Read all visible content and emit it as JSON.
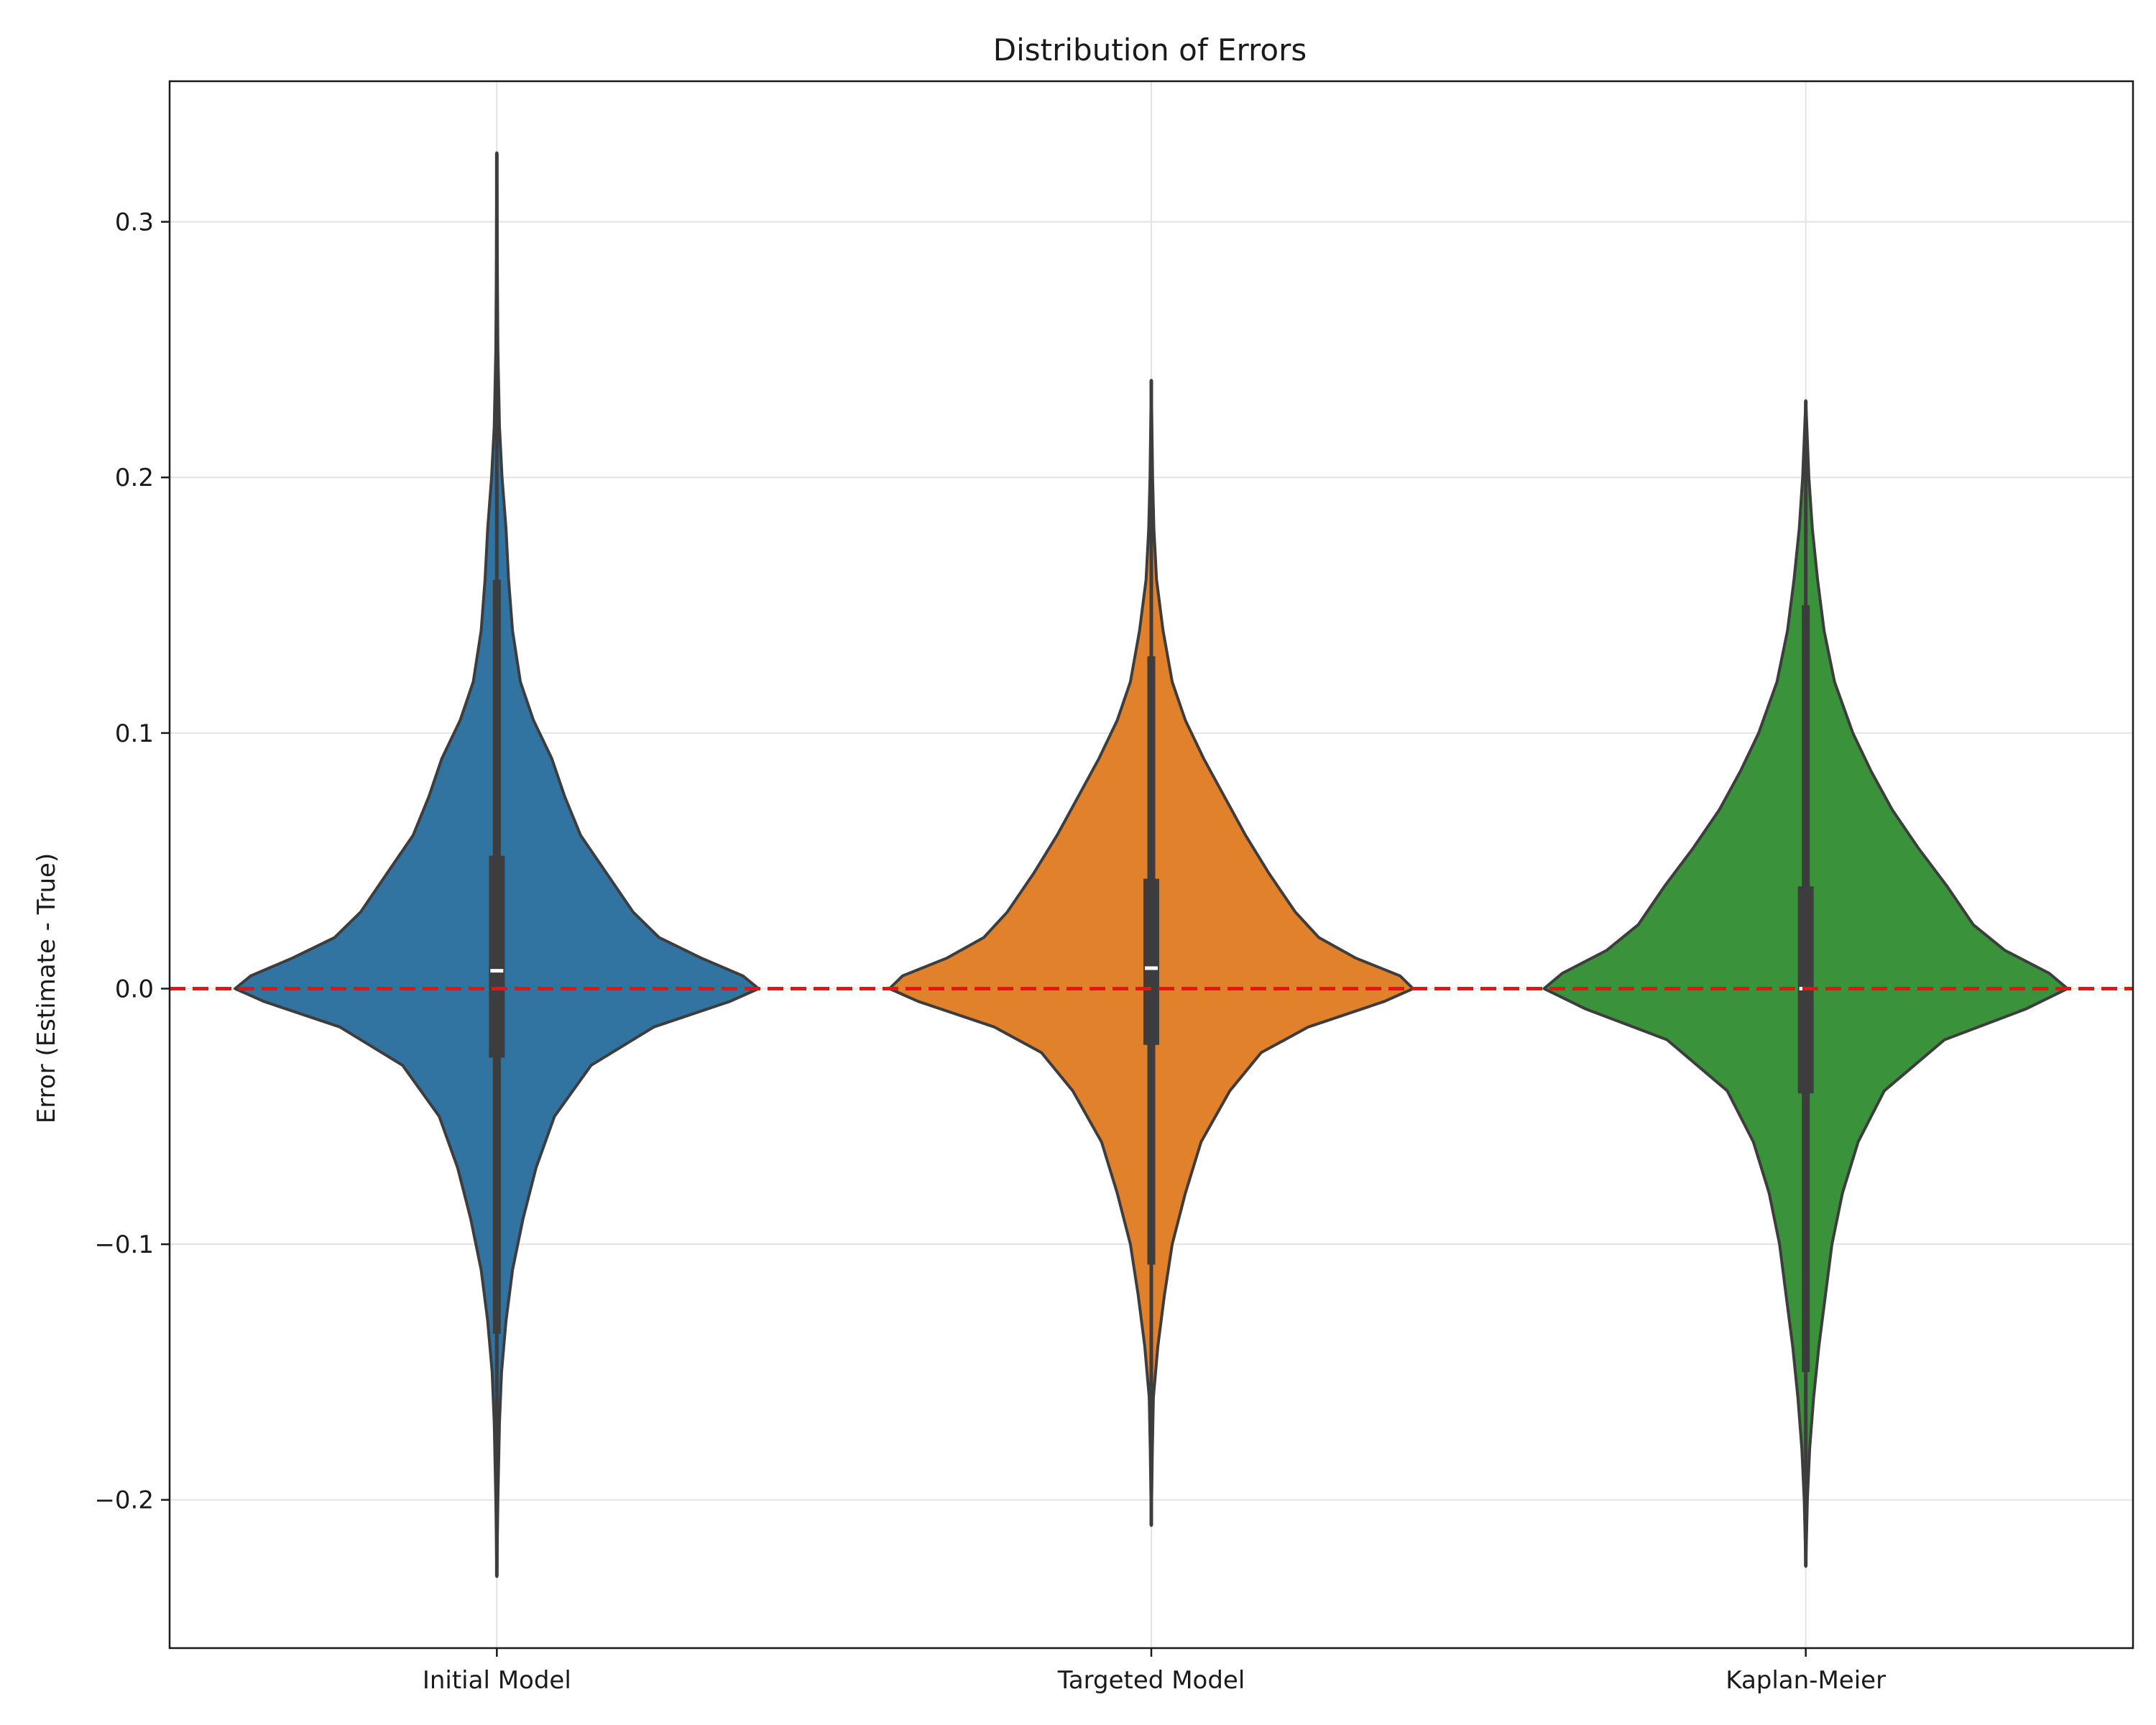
{
  "chart_data": {
    "type": "violin",
    "title": "Distribution of Errors",
    "xlabel": "",
    "ylabel": "Error (Estimate - True)",
    "ylim": [
      -0.258,
      0.355
    ],
    "yticks": [
      -0.2,
      -0.1,
      0.0,
      0.1,
      0.2,
      0.3
    ],
    "ytick_labels": [
      "−0.2",
      "−0.1",
      "0.0",
      "0.1",
      "0.2",
      "0.3"
    ],
    "grid": true,
    "reference_line": {
      "y": 0.0,
      "color": "#ee1111",
      "style": "dashed"
    },
    "categories": [
      "Initial Model",
      "Targeted Model",
      "Kaplan-Meier"
    ],
    "series": [
      {
        "category": "Initial Model",
        "color": "#3274a1",
        "min": -0.23,
        "q1": -0.027,
        "median": 0.007,
        "q3": 0.052,
        "max": 0.327,
        "whisker_low": -0.135,
        "whisker_high": 0.16,
        "density": [
          [
            -0.23,
            0.0
          ],
          [
            -0.2,
            0.004
          ],
          [
            -0.17,
            0.01
          ],
          [
            -0.15,
            0.018
          ],
          [
            -0.13,
            0.035
          ],
          [
            -0.11,
            0.06
          ],
          [
            -0.09,
            0.1
          ],
          [
            -0.07,
            0.15
          ],
          [
            -0.05,
            0.22
          ],
          [
            -0.03,
            0.36
          ],
          [
            -0.015,
            0.6
          ],
          [
            -0.005,
            0.89
          ],
          [
            0.0,
            1.0
          ],
          [
            0.005,
            0.94
          ],
          [
            0.012,
            0.78
          ],
          [
            0.02,
            0.62
          ],
          [
            0.03,
            0.52
          ],
          [
            0.045,
            0.42
          ],
          [
            0.06,
            0.32
          ],
          [
            0.075,
            0.26
          ],
          [
            0.09,
            0.21
          ],
          [
            0.105,
            0.14
          ],
          [
            0.12,
            0.09
          ],
          [
            0.14,
            0.06
          ],
          [
            0.16,
            0.045
          ],
          [
            0.18,
            0.035
          ],
          [
            0.2,
            0.02
          ],
          [
            0.22,
            0.01
          ],
          [
            0.25,
            0.004
          ],
          [
            0.28,
            0.002
          ],
          [
            0.327,
            0.0
          ]
        ]
      },
      {
        "category": "Targeted Model",
        "color": "#e1812c",
        "min": -0.21,
        "q1": -0.022,
        "median": 0.008,
        "q3": 0.043,
        "max": 0.238,
        "whisker_low": -0.108,
        "whisker_high": 0.13,
        "density": [
          [
            -0.21,
            0.0
          ],
          [
            -0.18,
            0.004
          ],
          [
            -0.16,
            0.008
          ],
          [
            -0.14,
            0.025
          ],
          [
            -0.12,
            0.05
          ],
          [
            -0.1,
            0.08
          ],
          [
            -0.08,
            0.13
          ],
          [
            -0.06,
            0.19
          ],
          [
            -0.04,
            0.3
          ],
          [
            -0.025,
            0.42
          ],
          [
            -0.015,
            0.6
          ],
          [
            -0.005,
            0.89
          ],
          [
            0.0,
            1.0
          ],
          [
            0.005,
            0.95
          ],
          [
            0.012,
            0.78
          ],
          [
            0.02,
            0.64
          ],
          [
            0.03,
            0.55
          ],
          [
            0.045,
            0.45
          ],
          [
            0.06,
            0.36
          ],
          [
            0.075,
            0.28
          ],
          [
            0.09,
            0.2
          ],
          [
            0.105,
            0.13
          ],
          [
            0.12,
            0.08
          ],
          [
            0.14,
            0.045
          ],
          [
            0.16,
            0.02
          ],
          [
            0.18,
            0.01
          ],
          [
            0.2,
            0.005
          ],
          [
            0.238,
            0.0
          ]
        ]
      },
      {
        "category": "Kaplan-Meier",
        "color": "#3a923a",
        "min": -0.226,
        "q1": -0.041,
        "median": 0.0,
        "q3": 0.04,
        "max": 0.23,
        "whisker_low": -0.15,
        "whisker_high": 0.15,
        "density": [
          [
            -0.226,
            0.0
          ],
          [
            -0.2,
            0.006
          ],
          [
            -0.18,
            0.015
          ],
          [
            -0.16,
            0.03
          ],
          [
            -0.14,
            0.05
          ],
          [
            -0.12,
            0.075
          ],
          [
            -0.1,
            0.1
          ],
          [
            -0.08,
            0.14
          ],
          [
            -0.06,
            0.2
          ],
          [
            -0.04,
            0.3
          ],
          [
            -0.02,
            0.53
          ],
          [
            -0.008,
            0.84
          ],
          [
            0.0,
            1.0
          ],
          [
            0.006,
            0.93
          ],
          [
            0.015,
            0.76
          ],
          [
            0.025,
            0.64
          ],
          [
            0.04,
            0.54
          ],
          [
            0.055,
            0.43
          ],
          [
            0.07,
            0.33
          ],
          [
            0.085,
            0.25
          ],
          [
            0.1,
            0.18
          ],
          [
            0.12,
            0.11
          ],
          [
            0.14,
            0.07
          ],
          [
            0.16,
            0.045
          ],
          [
            0.18,
            0.025
          ],
          [
            0.2,
            0.012
          ],
          [
            0.23,
            0.0
          ]
        ]
      }
    ]
  }
}
